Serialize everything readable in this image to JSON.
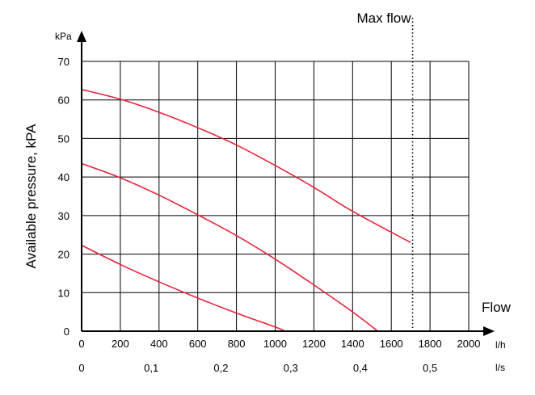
{
  "chart_data": {
    "type": "line",
    "title": "",
    "ylabel": "Available pressure, kPA",
    "y_unit": "kPa",
    "xlabel": "Flow",
    "x_unit_primary": "l/h",
    "x_unit_secondary": "l/s",
    "xlim": [
      0,
      2000
    ],
    "ylim": [
      0,
      70
    ],
    "x_ticks": [
      "0",
      "200",
      "400",
      "600",
      "800",
      "1000",
      "1200",
      "1400",
      "1600",
      "1800",
      "2000"
    ],
    "x_ticks_secondary": [
      {
        "value": 0,
        "label": "0"
      },
      {
        "value": 0.1,
        "label": "0,1"
      },
      {
        "value": 0.2,
        "label": "0,2"
      },
      {
        "value": 0.3,
        "label": "0,3"
      },
      {
        "value": 0.4,
        "label": "0,4"
      },
      {
        "value": 0.5,
        "label": "0,5"
      }
    ],
    "y_ticks": [
      "0",
      "10",
      "20",
      "30",
      "40",
      "50",
      "60",
      "70"
    ],
    "grid": true,
    "line_color": "#e8233d",
    "series": [
      {
        "x": [
          0,
          200,
          400,
          600,
          800,
          1000,
          1200,
          1400,
          1700
        ],
        "y": [
          62.7,
          60.2,
          56.8,
          52.8,
          48.3,
          43.0,
          37.3,
          31.1,
          23.0
        ]
      },
      {
        "x": [
          0,
          200,
          400,
          600,
          800,
          1000,
          1200,
          1400,
          1530
        ],
        "y": [
          43.5,
          39.8,
          35.3,
          30.2,
          24.8,
          18.7,
          12.0,
          5.0,
          0
        ]
      },
      {
        "x": [
          0,
          200,
          400,
          600,
          800,
          1000,
          1050
        ],
        "y": [
          22.3,
          17.3,
          12.8,
          8.6,
          4.7,
          1.1,
          0
        ]
      }
    ],
    "max_flow": {
      "label": "Max flow",
      "x": 1710
    }
  }
}
